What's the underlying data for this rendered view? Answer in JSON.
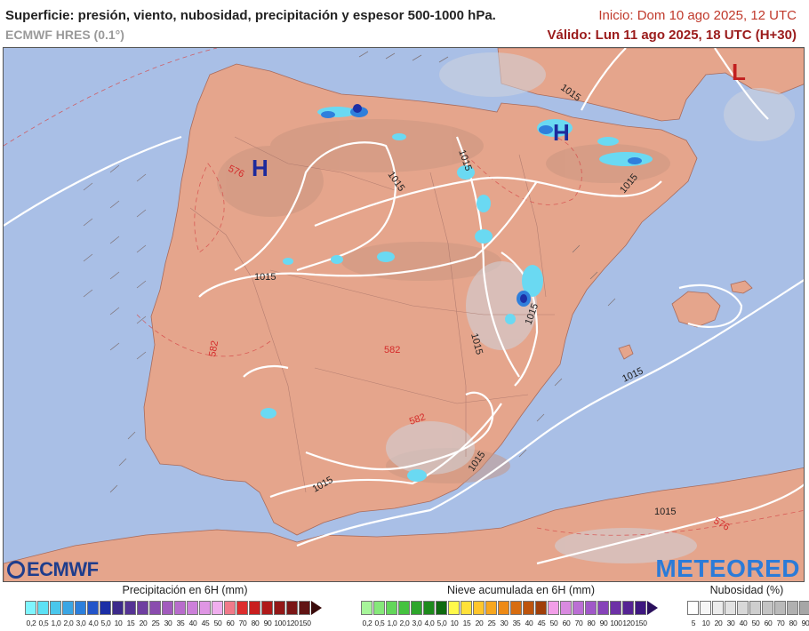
{
  "header": {
    "title": "Superficie: presión, viento, nubosidad, precipitación y espesor 500-1000 hPa.",
    "model": "ECMWF HRES (0.1°)",
    "init": "Inicio: Dom 10 ago 2025, 12 UTC",
    "valid": "Válido: Lun 11 ago 2025, 18 UTC (H+30)"
  },
  "map": {
    "isobar_labels": [
      {
        "text": "1015"
      },
      {
        "text": "1015"
      },
      {
        "text": "1015"
      },
      {
        "text": "1015"
      },
      {
        "text": "1015"
      },
      {
        "text": "1015"
      },
      {
        "text": "1015"
      },
      {
        "text": "1015"
      },
      {
        "text": "1015"
      },
      {
        "text": "1015"
      },
      {
        "text": "1015"
      }
    ],
    "thickness_labels": [
      {
        "text": "576"
      },
      {
        "text": "582"
      },
      {
        "text": "582"
      },
      {
        "text": "582"
      },
      {
        "text": "576"
      }
    ],
    "pressure_centres": [
      {
        "text": "H",
        "color": "#1d2a9c"
      },
      {
        "text": "H",
        "color": "#1d2a9c"
      },
      {
        "text": "L",
        "color": "#c21f1f"
      }
    ]
  },
  "logos": {
    "ecmwf": "ECMWF",
    "meteored": "METEORED"
  },
  "legends": {
    "precip": {
      "title": "Precipitación en 6H (mm)",
      "ticks": [
        "0,2",
        "0,5",
        "1,0",
        "2,0",
        "3,0",
        "4,0",
        "5,0",
        "10",
        "15",
        "20",
        "25",
        "30",
        "35",
        "40",
        "45",
        "50",
        "60",
        "70",
        "80",
        "90",
        "100",
        "120",
        "150"
      ],
      "colors": [
        "#7ff5ff",
        "#5ce1f5",
        "#4ac7ec",
        "#3aa6e4",
        "#2c7fdc",
        "#2355c9",
        "#1c2fa6",
        "#3c2a8a",
        "#553394",
        "#6f3fa0",
        "#8a4cae",
        "#a25bbd",
        "#b86ccc",
        "#cc80d9",
        "#df96e4",
        "#f0aeee",
        "#f07a8a",
        "#dd2d2d",
        "#c81e1e",
        "#b01a1a",
        "#931818",
        "#7a1616",
        "#611414"
      ],
      "arrow_color": "#3a0b0b"
    },
    "snow": {
      "title": "Nieve acumulada en 6H (mm)",
      "ticks": [
        "0,2",
        "0,5",
        "1,0",
        "2,0",
        "3,0",
        "4,0",
        "5,0",
        "10",
        "15",
        "20",
        "25",
        "30",
        "35",
        "40",
        "45",
        "50",
        "60",
        "70",
        "80",
        "90",
        "100",
        "120",
        "150"
      ],
      "colors": [
        "#a7f59a",
        "#86e87a",
        "#63d65a",
        "#45c23f",
        "#2da62b",
        "#1d8a1c",
        "#0f6a10",
        "#fff94a",
        "#ffe13a",
        "#ffc62c",
        "#f7a71f",
        "#ee8a16",
        "#d76d10",
        "#bd540d",
        "#a03f0a",
        "#f29ee8",
        "#d98ae0",
        "#bb6fd4",
        "#a058c8",
        "#8743b9",
        "#6d31a6",
        "#552393",
        "#3e1780"
      ],
      "arrow_color": "#2a0f5c"
    },
    "cloud": {
      "title": "Nubosidad (%)",
      "ticks": [
        "5",
        "10",
        "20",
        "30",
        "40",
        "50",
        "60",
        "70",
        "80",
        "90"
      ],
      "colors": [
        "#ffffff",
        "#f6f6f6",
        "#ececec",
        "#e2e2e2",
        "#d8d8d8",
        "#cecece",
        "#c4c4c4",
        "#bababa",
        "#b0b0b0",
        "#a6a6a6"
      ],
      "arrow_color": "#9c9c9c"
    }
  }
}
